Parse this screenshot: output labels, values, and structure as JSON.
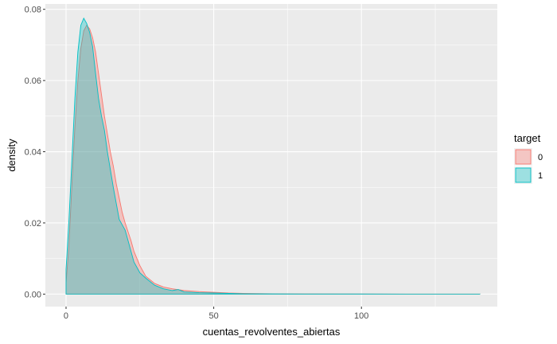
{
  "chart_data": {
    "type": "area",
    "subtype": "density",
    "xlabel": "cuentas_revolventes_abiertas",
    "ylabel": "density",
    "xlim": [
      -7,
      146
    ],
    "ylim": [
      -0.0035,
      0.0815
    ],
    "x_ticks": [
      0,
      50,
      100
    ],
    "y_ticks": [
      0.0,
      0.02,
      0.04,
      0.06,
      0.08
    ],
    "x_tick_labels": [
      "0",
      "50",
      "100"
    ],
    "y_tick_labels": [
      "0.00",
      "0.02",
      "0.04",
      "0.06",
      "0.08"
    ],
    "grid": true,
    "legend": {
      "title": "target",
      "placement": "right",
      "entries": [
        "0",
        "1"
      ]
    },
    "series": [
      {
        "name": "0",
        "fill": "#F8766D",
        "stroke": "#F8766D",
        "points": [
          [
            0,
            0.003
          ],
          [
            1,
            0.014
          ],
          [
            2,
            0.031
          ],
          [
            3,
            0.047
          ],
          [
            4,
            0.06
          ],
          [
            5,
            0.069
          ],
          [
            6,
            0.074
          ],
          [
            7,
            0.0755
          ],
          [
            8,
            0.0745
          ],
          [
            9,
            0.072
          ],
          [
            10,
            0.068
          ],
          [
            11,
            0.062
          ],
          [
            12,
            0.056
          ],
          [
            13,
            0.05
          ],
          [
            14,
            0.045
          ],
          [
            15,
            0.04
          ],
          [
            16,
            0.036
          ],
          [
            17,
            0.031
          ],
          [
            18,
            0.027
          ],
          [
            19,
            0.023
          ],
          [
            20,
            0.02
          ],
          [
            21,
            0.0175
          ],
          [
            22,
            0.015
          ],
          [
            23,
            0.012
          ],
          [
            25,
            0.008
          ],
          [
            27,
            0.005
          ],
          [
            30,
            0.003
          ],
          [
            33,
            0.002
          ],
          [
            36,
            0.0015
          ],
          [
            40,
            0.001
          ],
          [
            45,
            0.0007
          ],
          [
            50,
            0.0005
          ],
          [
            55,
            0.0003
          ],
          [
            60,
            0.0002
          ],
          [
            70,
            0.0001
          ],
          [
            80,
            5e-05
          ],
          [
            100,
            2e-05
          ],
          [
            140,
            0
          ]
        ]
      },
      {
        "name": "1",
        "fill": "#00BFC4",
        "stroke": "#00BFC4",
        "points": [
          [
            0,
            0.007
          ],
          [
            1,
            0.021
          ],
          [
            2,
            0.038
          ],
          [
            3,
            0.055
          ],
          [
            4,
            0.068
          ],
          [
            5,
            0.0755
          ],
          [
            6,
            0.0775
          ],
          [
            7,
            0.076
          ],
          [
            8,
            0.0735
          ],
          [
            9,
            0.0695
          ],
          [
            10,
            0.062
          ],
          [
            11,
            0.055
          ],
          [
            12,
            0.05
          ],
          [
            13,
            0.046
          ],
          [
            14,
            0.04
          ],
          [
            15,
            0.035
          ],
          [
            16,
            0.03
          ],
          [
            17,
            0.0255
          ],
          [
            18,
            0.021
          ],
          [
            19,
            0.0195
          ],
          [
            20,
            0.018
          ],
          [
            21,
            0.015
          ],
          [
            22,
            0.012
          ],
          [
            23,
            0.009
          ],
          [
            25,
            0.006
          ],
          [
            27,
            0.0045
          ],
          [
            30,
            0.0025
          ],
          [
            33,
            0.0015
          ],
          [
            36,
            0.001
          ],
          [
            38,
            0.0013
          ],
          [
            40,
            0.0006
          ],
          [
            45,
            0.0004
          ],
          [
            50,
            0.0003
          ],
          [
            55,
            0.0002
          ],
          [
            60,
            0.0001
          ],
          [
            80,
            4e-05
          ],
          [
            100,
            2e-05
          ],
          [
            140,
            0
          ]
        ]
      }
    ]
  }
}
